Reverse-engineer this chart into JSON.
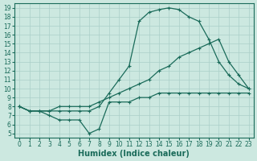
{
  "title": "",
  "xlabel": "Humidex (Indice chaleur)",
  "ylabel": "",
  "xlim": [
    -0.5,
    23.5
  ],
  "ylim": [
    4.5,
    19.5
  ],
  "xticks": [
    0,
    1,
    2,
    3,
    4,
    5,
    6,
    7,
    8,
    9,
    10,
    11,
    12,
    13,
    14,
    15,
    16,
    17,
    18,
    19,
    20,
    21,
    22,
    23
  ],
  "yticks": [
    5,
    6,
    7,
    8,
    9,
    10,
    11,
    12,
    13,
    14,
    15,
    16,
    17,
    18,
    19
  ],
  "bg_color": "#cce8e0",
  "grid_color": "#aacfc8",
  "line_color": "#1a6b5a",
  "line_top_x": [
    0,
    1,
    2,
    3,
    4,
    5,
    6,
    7,
    8,
    9,
    10,
    11,
    12,
    13,
    14,
    15,
    16,
    17,
    18,
    19,
    20,
    21,
    22,
    23
  ],
  "line_top_y": [
    8.0,
    7.5,
    7.5,
    7.5,
    7.5,
    7.5,
    7.5,
    7.5,
    8.0,
    9.5,
    11.0,
    12.5,
    17.5,
    18.5,
    18.8,
    19.0,
    18.8,
    18.0,
    17.5,
    15.5,
    13.0,
    11.5,
    10.5,
    10.0
  ],
  "line_mid_x": [
    0,
    1,
    2,
    3,
    4,
    5,
    6,
    7,
    8,
    9,
    10,
    11,
    12,
    13,
    14,
    15,
    16,
    17,
    18,
    19,
    20,
    21,
    22,
    23
  ],
  "line_mid_y": [
    8.0,
    7.5,
    7.5,
    7.5,
    8.0,
    8.0,
    8.0,
    8.0,
    8.5,
    9.0,
    9.5,
    10.0,
    10.5,
    11.0,
    12.0,
    12.5,
    13.5,
    14.0,
    14.5,
    15.0,
    15.5,
    13.0,
    11.5,
    10.0
  ],
  "line_bot_x": [
    0,
    1,
    2,
    3,
    4,
    5,
    6,
    7,
    8,
    9,
    10,
    11,
    12,
    13,
    14,
    15,
    16,
    17,
    18,
    19,
    20,
    21,
    22,
    23
  ],
  "line_bot_y": [
    8.0,
    7.5,
    7.5,
    7.0,
    6.5,
    6.5,
    6.5,
    5.0,
    5.5,
    8.5,
    8.5,
    8.5,
    9.0,
    9.0,
    9.5,
    9.5,
    9.5,
    9.5,
    9.5,
    9.5,
    9.5,
    9.5,
    9.5,
    9.5
  ],
  "marker": "+",
  "markersize": 3,
  "linewidth": 0.9,
  "tick_fontsize": 5.5,
  "xlabel_fontsize": 7
}
